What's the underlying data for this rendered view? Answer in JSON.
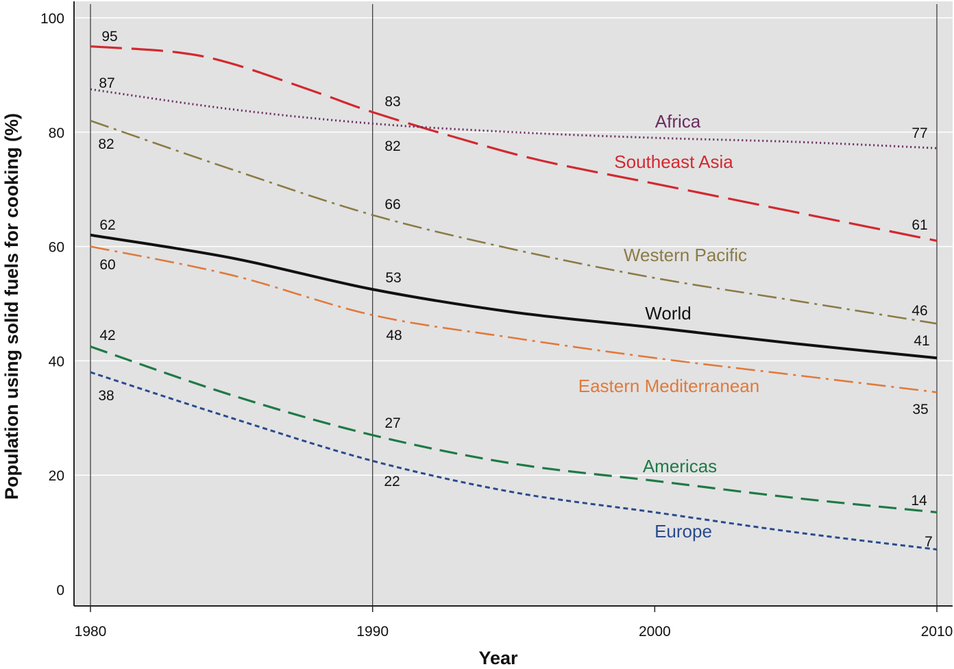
{
  "chart_data": {
    "type": "line",
    "xlabel": "Year",
    "ylabel": "Population using solid fuels for cooking (%)",
    "xlim": [
      1980,
      2010
    ],
    "ylim": [
      0,
      100
    ],
    "x_ticks": [
      "1980",
      "1990",
      "2000",
      "2010"
    ],
    "y_ticks": [
      "0",
      "20",
      "40",
      "60",
      "80",
      "100"
    ],
    "grid": "horizontal lines at y ticks; vertical lines at 1980, 1990, 2010",
    "background": "#e2e2e3",
    "series": [
      {
        "name": "Southeast Asia",
        "color": "#d3292e",
        "style": "long-dash",
        "x": [
          1980,
          1983,
          1985,
          1988,
          1990,
          1993,
          1996,
          2000,
          2005,
          2010
        ],
        "y": [
          95,
          94,
          92,
          87,
          83.5,
          79,
          75,
          71,
          66,
          61
        ],
        "labels": [
          {
            "x": 1980,
            "text": "95"
          },
          {
            "x": 1990,
            "text": "83"
          },
          {
            "x": 2010,
            "text": "61"
          }
        ]
      },
      {
        "name": "Africa",
        "color": "#6b2c5e",
        "style": "dotted",
        "x": [
          1980,
          1985,
          1990,
          1995,
          2000,
          2005,
          2010
        ],
        "y": [
          87.5,
          84,
          81.5,
          80,
          79,
          78.3,
          77.2
        ],
        "labels": [
          {
            "x": 1980,
            "text": "87"
          },
          {
            "x": 1990,
            "text": "82"
          },
          {
            "x": 2010,
            "text": "77"
          }
        ]
      },
      {
        "name": "Western Pacific",
        "color": "#8b7b45",
        "style": "dash-dot",
        "x": [
          1980,
          1985,
          1990,
          1995,
          2000,
          2005,
          2010
        ],
        "y": [
          82,
          73.5,
          65.5,
          59.5,
          54.5,
          50.5,
          46.5
        ],
        "labels": [
          {
            "x": 1980,
            "text": "82"
          },
          {
            "x": 1990,
            "text": "66"
          },
          {
            "x": 2010,
            "text": "46"
          }
        ]
      },
      {
        "name": "World",
        "color": "#111111",
        "style": "solid",
        "x": [
          1980,
          1985,
          1990,
          1995,
          2000,
          2005,
          2010
        ],
        "y": [
          62,
          58,
          52.5,
          48.5,
          45.8,
          43,
          40.5
        ],
        "labels": [
          {
            "x": 1980,
            "text": "62"
          },
          {
            "x": 1990,
            "text": "53"
          },
          {
            "x": 2010,
            "text": "41"
          }
        ]
      },
      {
        "name": "Eastern Mediterranean",
        "color": "#e07a3a",
        "style": "dash-dot",
        "x": [
          1980,
          1985,
          1990,
          1995,
          2000,
          2005,
          2010
        ],
        "y": [
          60,
          55,
          48,
          44,
          40.5,
          37.5,
          34.5
        ],
        "labels": [
          {
            "x": 1980,
            "text": "60"
          },
          {
            "x": 1990,
            "text": "48"
          },
          {
            "x": 2010,
            "text": "35"
          }
        ]
      },
      {
        "name": "Americas",
        "color": "#1f7a45",
        "style": "dashed",
        "x": [
          1980,
          1985,
          1990,
          1995,
          2000,
          2005,
          2010
        ],
        "y": [
          42.5,
          34,
          27,
          22,
          19,
          16,
          13.5
        ],
        "labels": [
          {
            "x": 1980,
            "text": "42"
          },
          {
            "x": 1990,
            "text": "27"
          },
          {
            "x": 2010,
            "text": "14"
          }
        ]
      },
      {
        "name": "Europe",
        "color": "#2a4b8c",
        "style": "short-dash",
        "x": [
          1980,
          1985,
          1990,
          1995,
          2000,
          2005,
          2010
        ],
        "y": [
          38,
          30,
          22.5,
          17,
          13.5,
          10,
          7
        ],
        "labels": [
          {
            "x": 1980,
            "text": "38"
          },
          {
            "x": 1990,
            "text": "22"
          },
          {
            "x": 2010,
            "text": "7"
          }
        ]
      }
    ]
  }
}
